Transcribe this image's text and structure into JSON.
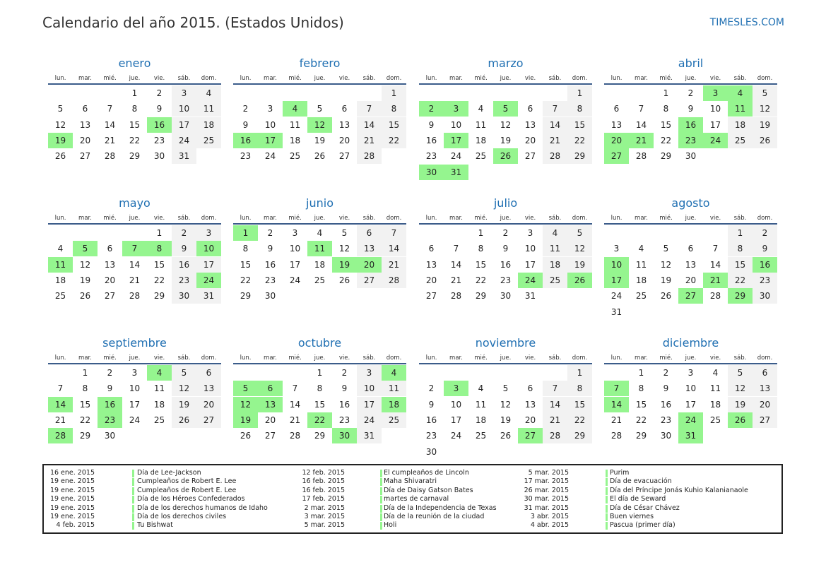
{
  "header": {
    "title": "Calendario del año 2015. (Estados Unidos)",
    "site": "TIMESLES.COM"
  },
  "day_headers": [
    "lun.",
    "mar.",
    "mié.",
    "jue.",
    "vie.",
    "sáb.",
    "dom."
  ],
  "colors": {
    "holiday": "#95f58f",
    "weekend": "#f2f2f2",
    "month_title": "#1f6fb2",
    "rule": "#3b5c8a"
  },
  "months": [
    {
      "name": "enero",
      "start": 3,
      "days": 31,
      "holidays": [
        16,
        19
      ]
    },
    {
      "name": "febrero",
      "start": 6,
      "days": 28,
      "holidays": [
        4,
        12,
        16,
        17
      ]
    },
    {
      "name": "marzo",
      "start": 6,
      "days": 31,
      "holidays": [
        2,
        3,
        5,
        17,
        26,
        30,
        31
      ]
    },
    {
      "name": "abril",
      "start": 2,
      "days": 30,
      "holidays": [
        3,
        4,
        11,
        16,
        20,
        21,
        23,
        24,
        27
      ]
    },
    {
      "name": "mayo",
      "start": 4,
      "days": 31,
      "holidays": [
        5,
        7,
        8,
        10,
        11,
        24
      ]
    },
    {
      "name": "junio",
      "start": 0,
      "days": 30,
      "holidays": [
        1,
        11,
        19,
        20
      ]
    },
    {
      "name": "julio",
      "start": 2,
      "days": 31,
      "holidays": [
        24,
        26
      ]
    },
    {
      "name": "agosto",
      "start": 5,
      "days": 31,
      "holidays": [
        10,
        16,
        17,
        21,
        27,
        29
      ]
    },
    {
      "name": "septiembre",
      "start": 1,
      "days": 30,
      "holidays": [
        4,
        14,
        16,
        23,
        28
      ]
    },
    {
      "name": "octubre",
      "start": 3,
      "days": 31,
      "holidays": [
        4,
        5,
        6,
        12,
        13,
        18,
        19,
        22,
        30
      ]
    },
    {
      "name": "noviembre",
      "start": 6,
      "days": 30,
      "holidays": [
        3,
        27
      ]
    },
    {
      "name": "diciembre",
      "start": 1,
      "days": 31,
      "holidays": [
        7,
        14,
        24,
        26,
        31
      ]
    }
  ],
  "legend": [
    [
      {
        "date": "16 ene. 2015",
        "name": "Día de Lee-Jackson"
      },
      {
        "date": "19 ene. 2015",
        "name": "Cumpleaños de Robert E. Lee"
      },
      {
        "date": "19 ene. 2015",
        "name": "Cumpleaños de Robert E. Lee"
      },
      {
        "date": "19 ene. 2015",
        "name": "Día de los Héroes Confederados"
      },
      {
        "date": "19 ene. 2015",
        "name": "Día de los derechos humanos de Idaho"
      },
      {
        "date": "19 ene. 2015",
        "name": "Día de los derechos civiles"
      },
      {
        "date": "4 feb. 2015",
        "name": "Tu Bishwat"
      }
    ],
    [
      {
        "date": "12 feb. 2015",
        "name": "El cumpleaños de Lincoln"
      },
      {
        "date": "16 feb. 2015",
        "name": "Maha Shivaratri"
      },
      {
        "date": "16 feb. 2015",
        "name": "Día de Daisy Gatson Bates"
      },
      {
        "date": "17 feb. 2015",
        "name": "martes de carnaval"
      },
      {
        "date": "2 mar. 2015",
        "name": "Día de la Independencia de Texas"
      },
      {
        "date": "3 mar. 2015",
        "name": "Día de la reunión de la ciudad"
      },
      {
        "date": "5 mar. 2015",
        "name": "Holi"
      }
    ],
    [
      {
        "date": "5 mar. 2015",
        "name": "Purim"
      },
      {
        "date": "17 mar. 2015",
        "name": "Día de evacuación"
      },
      {
        "date": "26 mar. 2015",
        "name": "Día del Príncipe Jonás Kuhio Kalanianaole"
      },
      {
        "date": "30 mar. 2015",
        "name": "El día de Seward"
      },
      {
        "date": "31 mar. 2015",
        "name": "Día de César Chávez"
      },
      {
        "date": "3 abr. 2015",
        "name": "Buen viernes"
      },
      {
        "date": "4 abr. 2015",
        "name": "Pascua (primer día)"
      }
    ]
  ]
}
